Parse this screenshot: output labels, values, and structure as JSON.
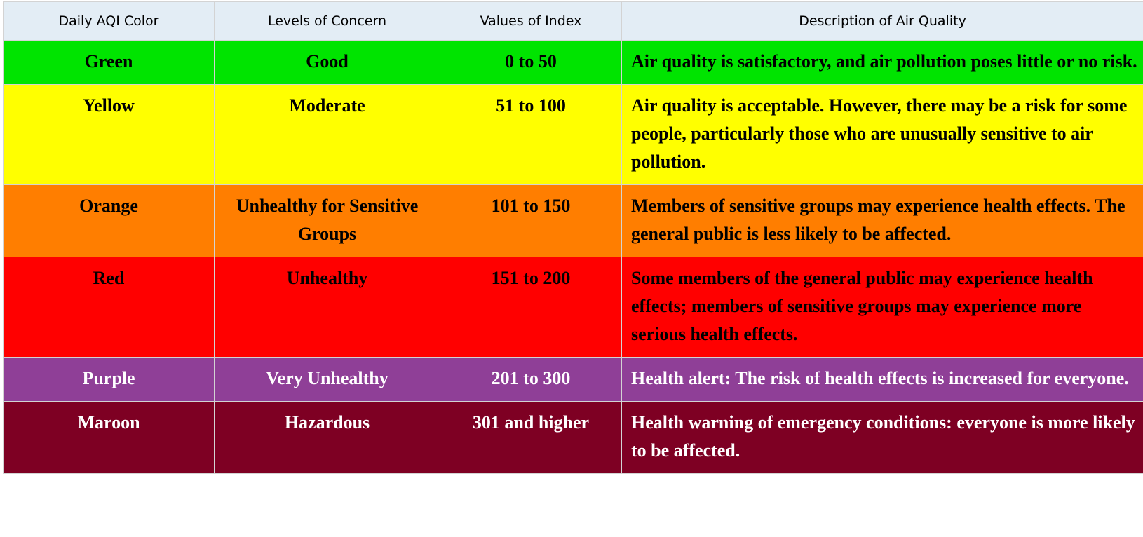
{
  "table": {
    "headers": [
      "Daily AQI Color",
      "Levels of Concern",
      "Values of Index",
      "Description of Air Quality"
    ],
    "rows": [
      {
        "color_name": "Green",
        "level": "Good",
        "values": "0 to 50",
        "description": "Air quality is satisfactory, and air pollution poses little or no risk.",
        "bg": "#00e400",
        "fg": "#000000"
      },
      {
        "color_name": "Yellow",
        "level": "Moderate",
        "values": "51 to 100",
        "description": "Air quality is acceptable. However, there may be a risk for some people, particularly those who are unusually sensitive to air pollution.",
        "bg": "#ffff00",
        "fg": "#000000"
      },
      {
        "color_name": "Orange",
        "level": "Unhealthy for Sensitive Groups",
        "values": "101 to 150",
        "description": "Members of sensitive groups may experience health effects. The general public is less likely to be affected.",
        "bg": "#ff7e00",
        "fg": "#000000"
      },
      {
        "color_name": "Red",
        "level": "Unhealthy",
        "values": "151 to 200",
        "description": "Some members of the general public may experience health effects; members of sensitive groups may experience more serious health effects.",
        "bg": "#ff0000",
        "fg": "#000000"
      },
      {
        "color_name": "Purple",
        "level": "Very Unhealthy",
        "values": "201 to 300",
        "description": "Health alert: The risk of health effects is increased for everyone.",
        "bg": "#8f3f97",
        "fg": "#ffffff"
      },
      {
        "color_name": "Maroon",
        "level": "Hazardous",
        "values": "301 and higher",
        "description": "Health warning of emergency conditions: everyone is more likely to be affected.",
        "bg": "#7e0023",
        "fg": "#ffffff"
      }
    ]
  }
}
